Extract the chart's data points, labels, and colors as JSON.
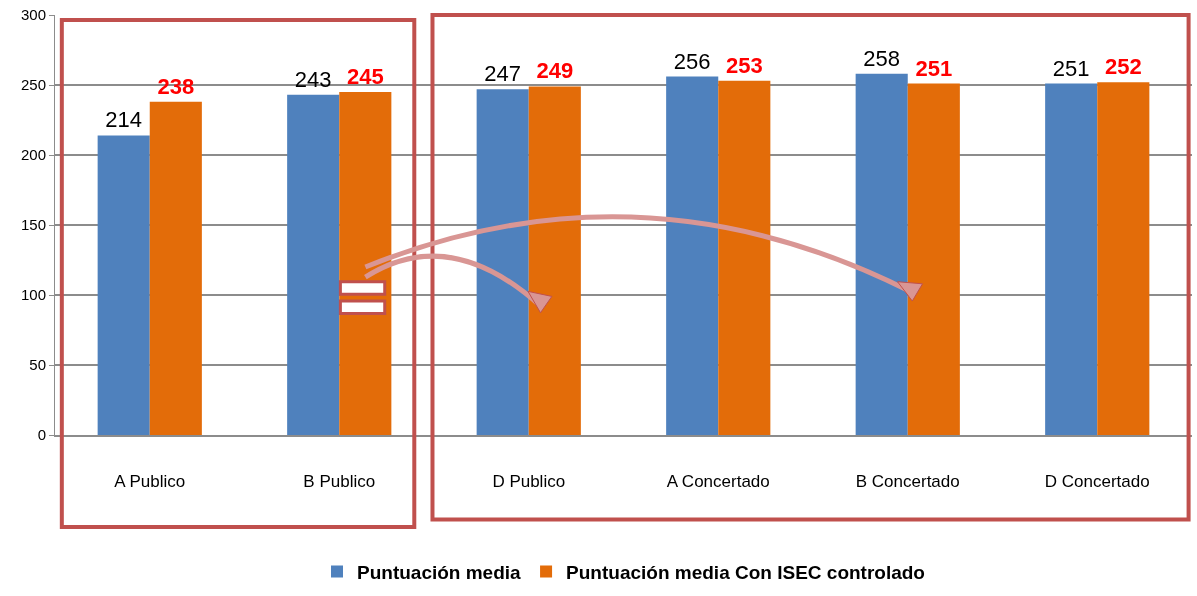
{
  "chart_data": {
    "type": "bar",
    "categories": [
      "A Publico",
      "B Publico",
      "D Publico",
      "A Concertado",
      "B Concertado",
      "D Concertado"
    ],
    "series": [
      {
        "name": "Puntuación media",
        "color": "#4f81bd",
        "values": [
          214,
          243,
          247,
          256,
          258,
          251
        ]
      },
      {
        "name": "Puntuación media Con ISEC controlado",
        "color": "#e36c09",
        "values": [
          238,
          245,
          249,
          253,
          251,
          252
        ]
      }
    ],
    "ylim": [
      0,
      300
    ],
    "yticks": [
      0,
      50,
      100,
      150,
      200,
      250,
      300
    ],
    "grid": "y",
    "legend": "bottom",
    "data_labels": true
  }
}
